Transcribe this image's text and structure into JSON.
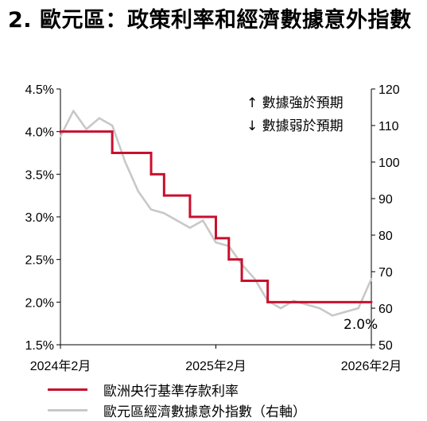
{
  "title": "2. 歐元區：政策利率和經濟數據意外指數",
  "annotations": {
    "strong": "↑ 數據強於預期",
    "weak": "↓ 數據弱於預期",
    "end_label": "2.0%"
  },
  "colors": {
    "rate": "#c8102e",
    "surprise": "#c8c8c8"
  },
  "chart_data": {
    "type": "line",
    "x_ticks": [
      "2024年2月",
      "2025年2月",
      "2026年2月"
    ],
    "ylim_left": [
      1.5,
      4.5
    ],
    "y_ticks_left": [
      "4.5%",
      "4.0%",
      "3.5%",
      "3.0%",
      "2.5%",
      "2.0%",
      "1.5%"
    ],
    "ylim_right": [
      50,
      120
    ],
    "y_ticks_right": [
      "120",
      "110",
      "100",
      "90",
      "80",
      "70",
      "60",
      "50"
    ],
    "series": [
      {
        "name": "歐洲央行基準存款利率",
        "axis": "left",
        "step": true,
        "x": [
          "2024-02",
          "2024-06",
          "2024-09",
          "2024-10",
          "2024-12",
          "2025-02",
          "2025-03",
          "2025-04",
          "2025-06",
          "2026-02"
        ],
        "y": [
          4.0,
          3.75,
          3.5,
          3.25,
          3.0,
          2.75,
          2.5,
          2.25,
          2.0,
          2.0
        ]
      },
      {
        "name": "歐元區經濟數據意外指數（右軸）",
        "axis": "right",
        "x": [
          "2024-02",
          "2024-03",
          "2024-04",
          "2024-05",
          "2024-06",
          "2024-07",
          "2024-08",
          "2024-09",
          "2024-10",
          "2024-11",
          "2024-12",
          "2025-01",
          "2025-02",
          "2025-03",
          "2025-04",
          "2025-05",
          "2025-06",
          "2025-07",
          "2025-08",
          "2025-09",
          "2025-10",
          "2025-11",
          "2025-12",
          "2026-01",
          "2026-02"
        ],
        "y": [
          107,
          114,
          109,
          112,
          110,
          100,
          92,
          87,
          86,
          84,
          82,
          84,
          78,
          77,
          72,
          68,
          62,
          60,
          62,
          61,
          60,
          58,
          59,
          60,
          68
        ]
      }
    ]
  },
  "legend": {
    "rate_label": "歐洲央行基準存款利率",
    "surprise_label": "歐元區經濟數據意外指數（右軸）"
  }
}
